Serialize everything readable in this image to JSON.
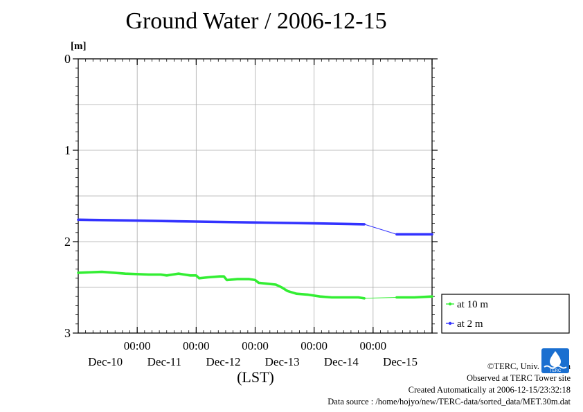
{
  "chart_data": {
    "type": "line",
    "title": "Ground Water / 2006-12-15",
    "xlabel": "(LST)",
    "ylabel": "[m]",
    "ylim": [
      3,
      0
    ],
    "y_inverted": true,
    "yticks": [
      0,
      1,
      2,
      3
    ],
    "y_minor": [
      0.5,
      1.5,
      2.5
    ],
    "x_unit": "days since 2006-12-09 00:00 LST",
    "xlim": [
      0.0,
      6.0
    ],
    "xticks": [
      {
        "x": 1,
        "time": "00:00",
        "date": "Dec-10"
      },
      {
        "x": 2,
        "time": "00:00",
        "date": "Dec-11"
      },
      {
        "x": 3,
        "time": "00:00",
        "date": "Dec-12"
      },
      {
        "x": 4,
        "time": "00:00",
        "date": "Dec-13"
      },
      {
        "x": 5,
        "time": "00:00",
        "date": "Dec-14"
      },
      {
        "x": 6,
        "time": "",
        "date": "Dec-15"
      }
    ],
    "grid": true,
    "legend_position": "right",
    "series": [
      {
        "name": "at 10 m",
        "color": "#33ee33",
        "segments": [
          [
            [
              0.0,
              2.34
            ],
            [
              0.4,
              2.33
            ],
            [
              0.8,
              2.35
            ],
            [
              1.2,
              2.36
            ],
            [
              1.4,
              2.36
            ],
            [
              1.5,
              2.37
            ],
            [
              1.6,
              2.36
            ],
            [
              1.7,
              2.35
            ],
            [
              1.8,
              2.36
            ],
            [
              1.9,
              2.37
            ],
            [
              2.0,
              2.37
            ],
            [
              2.05,
              2.4
            ],
            [
              2.2,
              2.39
            ],
            [
              2.4,
              2.38
            ],
            [
              2.47,
              2.38
            ],
            [
              2.52,
              2.42
            ],
            [
              2.7,
              2.41
            ],
            [
              2.9,
              2.41
            ],
            [
              3.0,
              2.42
            ],
            [
              3.06,
              2.45
            ],
            [
              3.2,
              2.46
            ],
            [
              3.35,
              2.47
            ],
            [
              3.45,
              2.5
            ],
            [
              3.55,
              2.54
            ],
            [
              3.7,
              2.57
            ],
            [
              3.9,
              2.58
            ],
            [
              4.1,
              2.6
            ],
            [
              4.3,
              2.61
            ],
            [
              4.5,
              2.61
            ],
            [
              4.6,
              2.61
            ],
            [
              4.75,
              2.61
            ],
            [
              4.85,
              2.62
            ]
          ],
          [
            [
              5.4,
              2.61
            ],
            [
              5.7,
              2.61
            ],
            [
              6.0,
              2.6
            ]
          ]
        ],
        "gap_link": [
          [
            4.85,
            2.62
          ],
          [
            5.4,
            2.61
          ]
        ]
      },
      {
        "name": "at 2 m",
        "color": "#3333ff",
        "segments": [
          [
            [
              0.0,
              1.76
            ],
            [
              1.0,
              1.77
            ],
            [
              2.0,
              1.78
            ],
            [
              3.0,
              1.79
            ],
            [
              4.0,
              1.8
            ],
            [
              4.85,
              1.81
            ]
          ],
          [
            [
              5.4,
              1.92
            ],
            [
              6.0,
              1.92
            ]
          ]
        ],
        "gap_link": [
          [
            4.85,
            1.81
          ],
          [
            5.4,
            1.92
          ]
        ]
      }
    ]
  },
  "footer": {
    "copyright": "©TERC, Univ. Tsukuba",
    "observed": "Observed at TERC Tower site",
    "created": "Created Automatically at 2006-12-15/23:32:18",
    "source": "Data source : /home/hojyo/new/TERC-data/sorted_data/MET.30m.dat"
  },
  "logo": {
    "text": "TERC",
    "color": "#1a6fd0"
  }
}
